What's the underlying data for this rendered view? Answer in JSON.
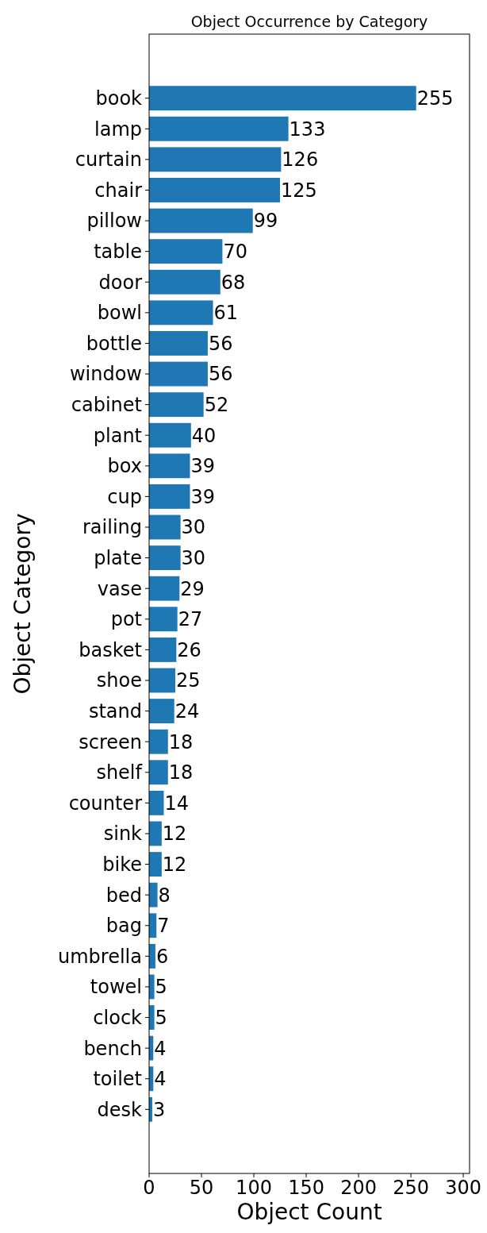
{
  "chart_data": {
    "type": "bar",
    "orientation": "horizontal",
    "title": "Object Occurrence by Category",
    "xlabel": "Object Count",
    "ylabel": "Object Category",
    "categories": [
      "book",
      "lamp",
      "curtain",
      "chair",
      "pillow",
      "table",
      "door",
      "bowl",
      "bottle",
      "window",
      "cabinet",
      "plant",
      "box",
      "cup",
      "railing",
      "plate",
      "vase",
      "pot",
      "basket",
      "shoe",
      "stand",
      "screen",
      "shelf",
      "counter",
      "sink",
      "bike",
      "bed",
      "bag",
      "umbrella",
      "towel",
      "clock",
      "bench",
      "toilet",
      "desk"
    ],
    "values": [
      255,
      133,
      126,
      125,
      99,
      70,
      68,
      61,
      56,
      56,
      52,
      40,
      39,
      39,
      30,
      30,
      29,
      27,
      26,
      25,
      24,
      18,
      18,
      14,
      12,
      12,
      8,
      7,
      6,
      5,
      5,
      4,
      4,
      3
    ],
    "color": "#1f77b4",
    "xlim": [
      0,
      306
    ],
    "xticks": [
      0,
      50,
      100,
      150,
      200,
      250,
      300
    ],
    "data_labels": true,
    "grid": false
  }
}
